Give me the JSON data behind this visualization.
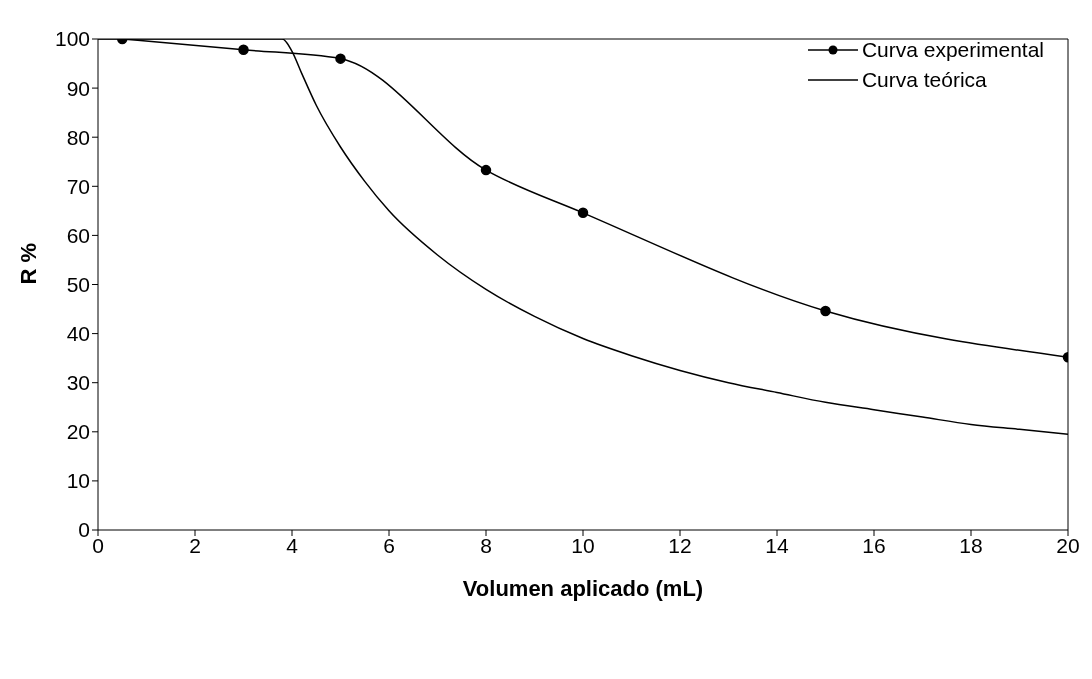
{
  "chart_data": {
    "type": "line",
    "xlabel": "Volumen aplicado (mL)",
    "ylabel": "R %",
    "xlim": [
      0,
      20
    ],
    "xticks": [
      0,
      2,
      4,
      6,
      8,
      10,
      12,
      14,
      16,
      18,
      20
    ],
    "ylim": [
      0,
      100
    ],
    "yticks": [
      0,
      10,
      20,
      30,
      40,
      50,
      60,
      70,
      80,
      90,
      100
    ],
    "legend": "top right",
    "line_style": "solid",
    "series": [
      {
        "name": "Curva experimental",
        "color": "#000000",
        "marker": "circle",
        "x": [
          0.5,
          3,
          5,
          8,
          10,
          15,
          20
        ],
        "values": [
          100,
          97.8,
          96,
          73.3,
          64.6,
          44.6,
          35.2
        ]
      },
      {
        "name": "Curva teórica",
        "color": "#000000",
        "marker": "none",
        "x": [
          0,
          3.8,
          4,
          4.2,
          4.5,
          5,
          5.5,
          6,
          7,
          8,
          9,
          10,
          11,
          12,
          13,
          14,
          15,
          16,
          17,
          18,
          19,
          20
        ],
        "values": [
          100,
          100,
          97.5,
          93,
          86.5,
          78,
          71,
          65,
          56,
          49,
          43.5,
          39,
          35.5,
          32.5,
          30,
          28,
          26,
          24.5,
          23,
          21.5,
          20.5,
          19.5
        ]
      }
    ]
  }
}
